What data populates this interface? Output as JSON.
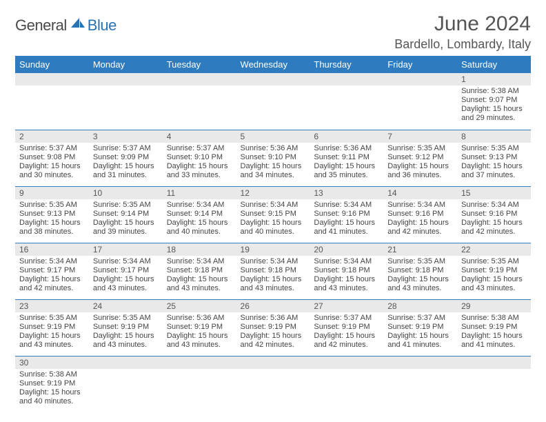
{
  "brand": {
    "general": "General",
    "blue": "Blue",
    "sail_color": "#2572b6"
  },
  "title": {
    "month": "June 2024",
    "location": "Bardello, Lombardy, Italy"
  },
  "colors": {
    "header_bg": "#2f7bbf",
    "header_text": "#ffffff",
    "daynum_bg": "#e9e9e9",
    "cell_border": "#2f7bbf",
    "body_text": "#444",
    "title_text": "#555"
  },
  "weekdays": [
    "Sunday",
    "Monday",
    "Tuesday",
    "Wednesday",
    "Thursday",
    "Friday",
    "Saturday"
  ],
  "weeks": [
    [
      {
        "empty": true
      },
      {
        "empty": true
      },
      {
        "empty": true
      },
      {
        "empty": true
      },
      {
        "empty": true
      },
      {
        "empty": true
      },
      {
        "day": 1,
        "sunrise": "5:38 AM",
        "sunset": "9:07 PM",
        "daylight_h": 15,
        "daylight_m": 29
      }
    ],
    [
      {
        "day": 2,
        "sunrise": "5:37 AM",
        "sunset": "9:08 PM",
        "daylight_h": 15,
        "daylight_m": 30
      },
      {
        "day": 3,
        "sunrise": "5:37 AM",
        "sunset": "9:09 PM",
        "daylight_h": 15,
        "daylight_m": 31
      },
      {
        "day": 4,
        "sunrise": "5:37 AM",
        "sunset": "9:10 PM",
        "daylight_h": 15,
        "daylight_m": 33
      },
      {
        "day": 5,
        "sunrise": "5:36 AM",
        "sunset": "9:10 PM",
        "daylight_h": 15,
        "daylight_m": 34
      },
      {
        "day": 6,
        "sunrise": "5:36 AM",
        "sunset": "9:11 PM",
        "daylight_h": 15,
        "daylight_m": 35
      },
      {
        "day": 7,
        "sunrise": "5:35 AM",
        "sunset": "9:12 PM",
        "daylight_h": 15,
        "daylight_m": 36
      },
      {
        "day": 8,
        "sunrise": "5:35 AM",
        "sunset": "9:13 PM",
        "daylight_h": 15,
        "daylight_m": 37
      }
    ],
    [
      {
        "day": 9,
        "sunrise": "5:35 AM",
        "sunset": "9:13 PM",
        "daylight_h": 15,
        "daylight_m": 38
      },
      {
        "day": 10,
        "sunrise": "5:35 AM",
        "sunset": "9:14 PM",
        "daylight_h": 15,
        "daylight_m": 39
      },
      {
        "day": 11,
        "sunrise": "5:34 AM",
        "sunset": "9:14 PM",
        "daylight_h": 15,
        "daylight_m": 40
      },
      {
        "day": 12,
        "sunrise": "5:34 AM",
        "sunset": "9:15 PM",
        "daylight_h": 15,
        "daylight_m": 40
      },
      {
        "day": 13,
        "sunrise": "5:34 AM",
        "sunset": "9:16 PM",
        "daylight_h": 15,
        "daylight_m": 41
      },
      {
        "day": 14,
        "sunrise": "5:34 AM",
        "sunset": "9:16 PM",
        "daylight_h": 15,
        "daylight_m": 42
      },
      {
        "day": 15,
        "sunrise": "5:34 AM",
        "sunset": "9:16 PM",
        "daylight_h": 15,
        "daylight_m": 42
      }
    ],
    [
      {
        "day": 16,
        "sunrise": "5:34 AM",
        "sunset": "9:17 PM",
        "daylight_h": 15,
        "daylight_m": 42
      },
      {
        "day": 17,
        "sunrise": "5:34 AM",
        "sunset": "9:17 PM",
        "daylight_h": 15,
        "daylight_m": 43
      },
      {
        "day": 18,
        "sunrise": "5:34 AM",
        "sunset": "9:18 PM",
        "daylight_h": 15,
        "daylight_m": 43
      },
      {
        "day": 19,
        "sunrise": "5:34 AM",
        "sunset": "9:18 PM",
        "daylight_h": 15,
        "daylight_m": 43
      },
      {
        "day": 20,
        "sunrise": "5:34 AM",
        "sunset": "9:18 PM",
        "daylight_h": 15,
        "daylight_m": 43
      },
      {
        "day": 21,
        "sunrise": "5:35 AM",
        "sunset": "9:18 PM",
        "daylight_h": 15,
        "daylight_m": 43
      },
      {
        "day": 22,
        "sunrise": "5:35 AM",
        "sunset": "9:19 PM",
        "daylight_h": 15,
        "daylight_m": 43
      }
    ],
    [
      {
        "day": 23,
        "sunrise": "5:35 AM",
        "sunset": "9:19 PM",
        "daylight_h": 15,
        "daylight_m": 43
      },
      {
        "day": 24,
        "sunrise": "5:35 AM",
        "sunset": "9:19 PM",
        "daylight_h": 15,
        "daylight_m": 43
      },
      {
        "day": 25,
        "sunrise": "5:36 AM",
        "sunset": "9:19 PM",
        "daylight_h": 15,
        "daylight_m": 43
      },
      {
        "day": 26,
        "sunrise": "5:36 AM",
        "sunset": "9:19 PM",
        "daylight_h": 15,
        "daylight_m": 42
      },
      {
        "day": 27,
        "sunrise": "5:37 AM",
        "sunset": "9:19 PM",
        "daylight_h": 15,
        "daylight_m": 42
      },
      {
        "day": 28,
        "sunrise": "5:37 AM",
        "sunset": "9:19 PM",
        "daylight_h": 15,
        "daylight_m": 41
      },
      {
        "day": 29,
        "sunrise": "5:38 AM",
        "sunset": "9:19 PM",
        "daylight_h": 15,
        "daylight_m": 41
      }
    ],
    [
      {
        "day": 30,
        "sunrise": "5:38 AM",
        "sunset": "9:19 PM",
        "daylight_h": 15,
        "daylight_m": 40
      },
      {
        "empty": true
      },
      {
        "empty": true
      },
      {
        "empty": true
      },
      {
        "empty": true
      },
      {
        "empty": true
      },
      {
        "empty": true
      }
    ]
  ],
  "labels": {
    "sunrise": "Sunrise:",
    "sunset": "Sunset:",
    "daylight": "Daylight:",
    "hours": "hours",
    "and": "and",
    "minutes": "minutes."
  }
}
